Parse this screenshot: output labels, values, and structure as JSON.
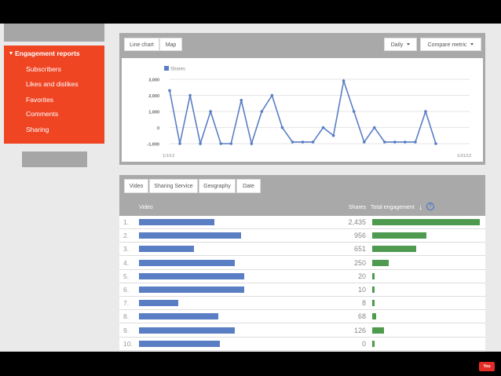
{
  "sidebar": {
    "header": "Engagement reports",
    "items": [
      "Subscribers",
      "Likes and dislikes",
      "Favorites",
      "Comments",
      "Sharing"
    ]
  },
  "chart_panel": {
    "buttons": {
      "line_chart": "Line chart",
      "map": "Map",
      "daily": "Daily",
      "compare": "Compare metric"
    }
  },
  "chart_data": {
    "type": "line",
    "series": [
      {
        "name": "Shares",
        "values": [
          2300,
          -1000,
          2000,
          -1000,
          1000,
          -1000,
          -1000,
          1700,
          -1000,
          1000,
          2000,
          0,
          -900,
          -900,
          -900,
          0,
          -500,
          2900,
          1000,
          -900,
          0,
          -900,
          -900,
          -900,
          -900,
          1000,
          -1000
        ]
      }
    ],
    "ylim": [
      -1000,
      3000
    ],
    "yticks": [
      "3,000",
      "2,000",
      "1,000",
      "0",
      "-1,000"
    ],
    "xticks": [
      "1/1/12",
      "1/31/12"
    ],
    "color": "#5a7ec4",
    "grid": true,
    "legend": "top-left"
  },
  "table": {
    "tabs": [
      "Video",
      "Sharing Service",
      "Geography",
      "Date"
    ],
    "headers": {
      "video": "Video",
      "shares": "Shares",
      "engagement": "Total engagement"
    },
    "colors": {
      "video_bar": "#5a7ec4",
      "engagement_bar": "#4e9a4f"
    },
    "rows": [
      {
        "num": "1.",
        "shares": "2,435",
        "video_frac": 0.4,
        "eng_frac": 1.0
      },
      {
        "num": "2.",
        "shares": "956",
        "video_frac": 0.54,
        "eng_frac": 0.5
      },
      {
        "num": "3.",
        "shares": "651",
        "video_frac": 0.29,
        "eng_frac": 0.41
      },
      {
        "num": "4.",
        "shares": "250",
        "video_frac": 0.51,
        "eng_frac": 0.15
      },
      {
        "num": "5.",
        "shares": "20",
        "video_frac": 0.56,
        "eng_frac": 0.025
      },
      {
        "num": "6.",
        "shares": "10",
        "video_frac": 0.56,
        "eng_frac": 0.02
      },
      {
        "num": "7.",
        "shares": "8",
        "video_frac": 0.21,
        "eng_frac": 0.02
      },
      {
        "num": "8.",
        "shares": "68",
        "video_frac": 0.42,
        "eng_frac": 0.04
      },
      {
        "num": "9.",
        "shares": "126",
        "video_frac": 0.51,
        "eng_frac": 0.11
      },
      {
        "num": "10.",
        "shares": "0",
        "video_frac": 0.43,
        "eng_frac": 0.02
      }
    ]
  }
}
